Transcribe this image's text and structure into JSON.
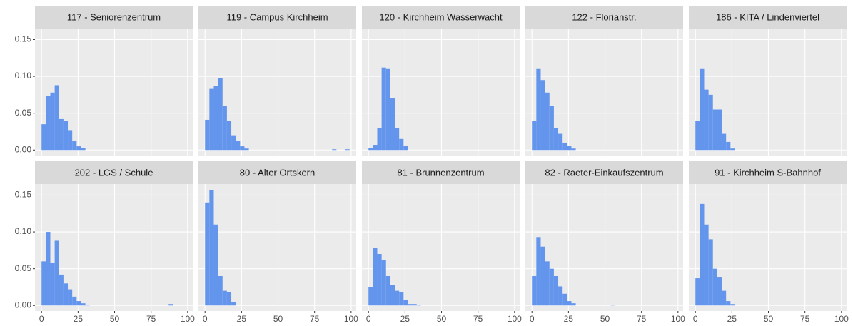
{
  "chart_data": {
    "type": "histogram",
    "color": "#6495ed",
    "grid": true,
    "xlim": [
      -4.5,
      103.5
    ],
    "ylim": [
      -0.0075,
      0.165
    ],
    "xticks": [
      0,
      25,
      50,
      75,
      100
    ],
    "yticks": [
      {
        "value": 0,
        "label": "0.00"
      },
      {
        "value": 0.05,
        "label": "0.05"
      },
      {
        "value": 0.1,
        "label": "0.10"
      },
      {
        "value": 0.15,
        "label": "0.15"
      }
    ],
    "panels": [
      {
        "title": "117 - Seniorenzentrum",
        "bins": [
          0,
          3,
          6,
          9,
          12,
          15,
          18,
          21,
          24,
          27,
          30
        ],
        "values": [
          0.035,
          0.073,
          0.078,
          0.088,
          0.042,
          0.04,
          0.027,
          0.012,
          0.005,
          0.003
        ]
      },
      {
        "title": "119 - Campus Kirchheim",
        "bins": [
          0,
          3,
          6,
          9,
          12,
          15,
          18,
          21,
          24,
          27,
          30,
          33,
          36,
          39,
          42,
          45,
          48,
          51,
          54,
          57,
          60,
          63,
          66,
          69,
          72,
          75,
          78,
          81,
          84,
          87,
          90,
          93,
          96,
          99
        ],
        "values": [
          0.041,
          0.083,
          0.087,
          0.098,
          0.06,
          0.04,
          0.02,
          0.012,
          0.005,
          0.002,
          0,
          0,
          0,
          0,
          0,
          0,
          0,
          0,
          0,
          0,
          0,
          0,
          0,
          0,
          0,
          0,
          0,
          0,
          0,
          0.001,
          0,
          0,
          0.001
        ]
      },
      {
        "title": "120 - Kirchheim Wasserwacht",
        "bins": [
          0,
          3,
          6,
          9,
          12,
          15,
          18,
          21,
          24,
          27
        ],
        "values": [
          0.003,
          0.007,
          0.03,
          0.112,
          0.11,
          0.07,
          0.03,
          0.015,
          0.006
        ]
      },
      {
        "title": "122 - Florianstr.",
        "bins": [
          0,
          3,
          6,
          9,
          12,
          15,
          18,
          21,
          24,
          27,
          30
        ],
        "values": [
          0.04,
          0.11,
          0.095,
          0.078,
          0.06,
          0.03,
          0.022,
          0.01,
          0.006,
          0.002
        ]
      },
      {
        "title": "186 - KITA / Lindenviertel",
        "bins": [
          0,
          3,
          6,
          9,
          12,
          15,
          18,
          21,
          24,
          27
        ],
        "values": [
          0.04,
          0.11,
          0.082,
          0.075,
          0.055,
          0.055,
          0.022,
          0.011,
          0.002
        ]
      },
      {
        "title": "202 - LGS / Schule",
        "bins": [
          0,
          3,
          6,
          9,
          12,
          15,
          18,
          21,
          24,
          27,
          30,
          33,
          36,
          39,
          42,
          45,
          48,
          51,
          54,
          57,
          60,
          63,
          66,
          69,
          72,
          75,
          78,
          81,
          84,
          87,
          90
        ],
        "values": [
          0.06,
          0.1,
          0.058,
          0.088,
          0.042,
          0.03,
          0.022,
          0.012,
          0.006,
          0.003,
          0.001,
          0,
          0,
          0,
          0,
          0,
          0,
          0,
          0,
          0,
          0,
          0,
          0,
          0,
          0,
          0,
          0,
          0,
          0,
          0.002
        ]
      },
      {
        "title": "80 - Alter Ortskern",
        "bins": [
          0,
          3,
          6,
          9,
          12,
          15,
          18,
          21
        ],
        "values": [
          0.14,
          0.157,
          0.11,
          0.04,
          0.02,
          0.018,
          0.005
        ]
      },
      {
        "title": "81 - Brunnenzentrum",
        "bins": [
          0,
          3,
          6,
          9,
          12,
          15,
          18,
          21,
          24,
          27,
          30,
          33,
          36
        ],
        "values": [
          0.025,
          0.078,
          0.07,
          0.062,
          0.04,
          0.028,
          0.02,
          0.018,
          0.008,
          0.002,
          0.002,
          0.001
        ]
      },
      {
        "title": "82 - Raeter-Einkaufszentrum",
        "bins": [
          0,
          3,
          6,
          9,
          12,
          15,
          18,
          21,
          24,
          27,
          30,
          33,
          36,
          39,
          42,
          45,
          48,
          51,
          54,
          57
        ],
        "values": [
          0.04,
          0.093,
          0.08,
          0.06,
          0.05,
          0.04,
          0.026,
          0.016,
          0.006,
          0.003,
          0,
          0,
          0,
          0,
          0,
          0,
          0,
          0,
          0.001
        ]
      },
      {
        "title": "91 - Kirchheim S-Bahnhof",
        "bins": [
          0,
          3,
          6,
          9,
          12,
          15,
          18,
          21,
          24,
          27
        ],
        "values": [
          0.037,
          0.138,
          0.11,
          0.09,
          0.05,
          0.038,
          0.02,
          0.006,
          0.002
        ]
      }
    ]
  }
}
